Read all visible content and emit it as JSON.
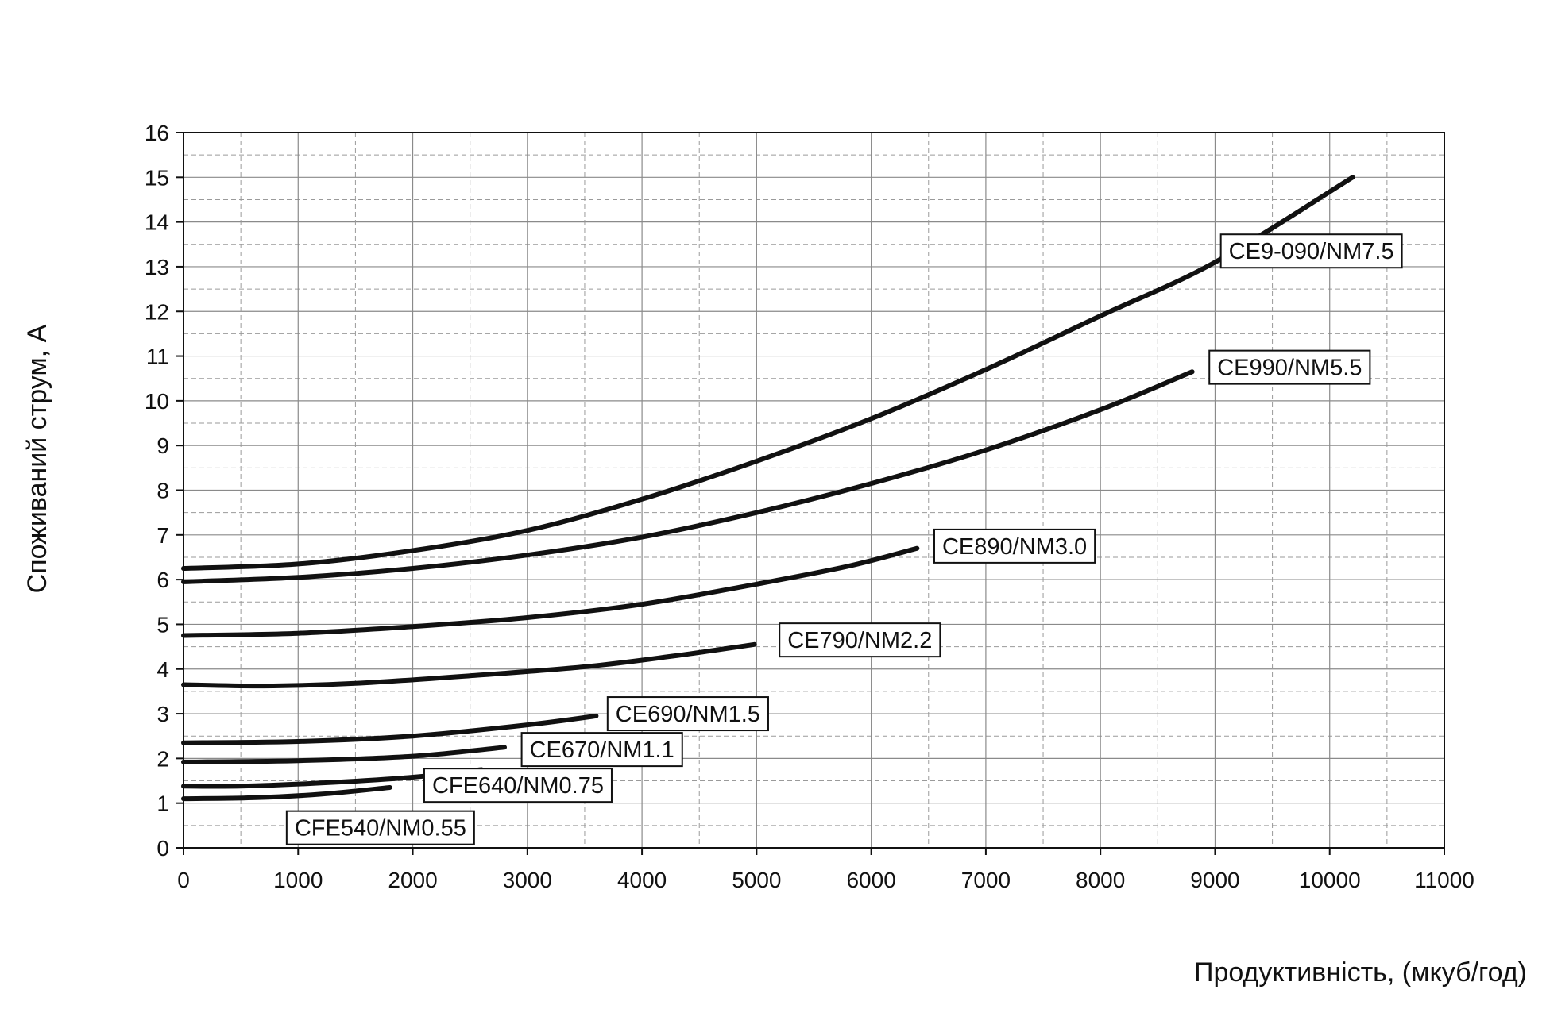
{
  "chart_data": {
    "type": "line",
    "title": "",
    "xlabel": "Продуктивність, (мкуб/год)",
    "ylabel": "Споживаний струм, А",
    "xlim": [
      0,
      11000
    ],
    "ylim": [
      0,
      16
    ],
    "x_ticks": [
      0,
      1000,
      2000,
      3000,
      4000,
      5000,
      6000,
      7000,
      8000,
      9000,
      10000,
      11000
    ],
    "y_ticks": [
      0,
      1,
      2,
      3,
      4,
      5,
      6,
      7,
      8,
      9,
      10,
      11,
      12,
      13,
      14,
      15,
      16
    ],
    "grid": true,
    "series": [
      {
        "name": "CE9-090/NM7.5",
        "x": [
          0,
          1000,
          2000,
          3000,
          4000,
          5000,
          6000,
          7000,
          8000,
          9000,
          10200
        ],
        "y": [
          6.25,
          6.35,
          6.65,
          7.1,
          7.8,
          8.65,
          9.6,
          10.7,
          11.9,
          13.1,
          15.0
        ],
        "label_anchor": [
          9050,
          13.35
        ]
      },
      {
        "name": "CE990/NM5.5",
        "x": [
          0,
          1000,
          2000,
          3000,
          4000,
          5000,
          6000,
          7000,
          8000,
          8800
        ],
        "y": [
          5.95,
          6.05,
          6.25,
          6.55,
          6.95,
          7.5,
          8.15,
          8.9,
          9.8,
          10.65
        ],
        "label_anchor": [
          8950,
          10.75
        ]
      },
      {
        "name": "CE890/NM3.0",
        "x": [
          0,
          1000,
          2000,
          3000,
          4000,
          5000,
          5800,
          6400
        ],
        "y": [
          4.75,
          4.8,
          4.95,
          5.15,
          5.45,
          5.9,
          6.3,
          6.7
        ],
        "label_anchor": [
          6550,
          6.75
        ]
      },
      {
        "name": "CE790/NM2.2",
        "x": [
          0,
          700,
          1500,
          2500,
          3500,
          4300,
          4980
        ],
        "y": [
          3.65,
          3.62,
          3.68,
          3.85,
          4.05,
          4.3,
          4.55
        ],
        "label_anchor": [
          5200,
          4.65
        ]
      },
      {
        "name": "CE690/NM1.5",
        "x": [
          0,
          1000,
          2000,
          3000,
          3600
        ],
        "y": [
          2.35,
          2.38,
          2.5,
          2.75,
          2.95
        ],
        "label_anchor": [
          3700,
          3.0
        ]
      },
      {
        "name": "CE670/NM1.1",
        "x": [
          0,
          1000,
          2000,
          2800
        ],
        "y": [
          1.92,
          1.95,
          2.05,
          2.25
        ],
        "label_anchor": [
          2950,
          2.2
        ]
      },
      {
        "name": "CFE640/NM0.75",
        "x": [
          0,
          500,
          1200,
          2000,
          2600
        ],
        "y": [
          1.38,
          1.38,
          1.45,
          1.58,
          1.75
        ],
        "label_anchor": [
          2100,
          1.4
        ]
      },
      {
        "name": "CFE540/NM0.55",
        "x": [
          0,
          600,
          1200,
          1800
        ],
        "y": [
          1.1,
          1.12,
          1.2,
          1.35
        ],
        "label_anchor": [
          900,
          0.45
        ]
      }
    ]
  }
}
